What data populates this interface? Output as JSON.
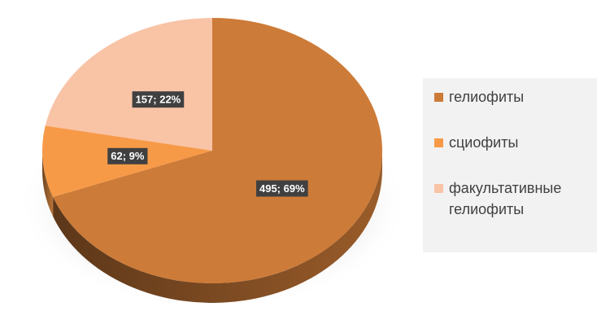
{
  "chart_data": {
    "type": "pie",
    "categories": [
      "гелиофиты",
      "сциофиты",
      "факультативные гелиофиты"
    ],
    "values": [
      495,
      62,
      157
    ],
    "value_labels": [
      "495; 69%",
      "62; 9%",
      "157; 22%"
    ],
    "colors": [
      "#cd7b38",
      "#f79a48",
      "#f9c3a6"
    ],
    "legend": "right"
  }
}
